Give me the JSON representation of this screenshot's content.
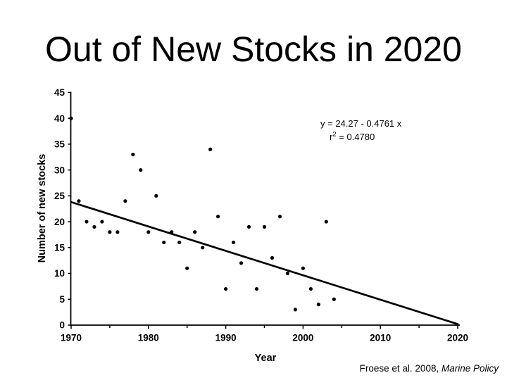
{
  "slide": {
    "title": "Out of New Stocks in 2020",
    "citation": {
      "text": "Froese et al. 2008, ",
      "source_italic": "Marine Policy"
    }
  },
  "chart_data": {
    "type": "scatter",
    "title": "",
    "xlabel": "Year",
    "ylabel": "Number of new stocks",
    "xlim": [
      1970,
      2020
    ],
    "ylim": [
      0,
      45
    ],
    "x_major_ticks": [
      1970,
      1980,
      1990,
      2000,
      2010,
      2020
    ],
    "x_minor_ticks": [
      1975,
      1985,
      1995,
      2005,
      2015
    ],
    "y_ticks": [
      0,
      5,
      10,
      15,
      20,
      25,
      30,
      35,
      40,
      45
    ],
    "grid": false,
    "legend": false,
    "marker_color": "#000000",
    "line_color": "#000000",
    "points": [
      [
        1970,
        40
      ],
      [
        1971,
        24
      ],
      [
        1972,
        20
      ],
      [
        1973,
        19
      ],
      [
        1974,
        20
      ],
      [
        1975,
        18
      ],
      [
        1976,
        18
      ],
      [
        1977,
        24
      ],
      [
        1978,
        33
      ],
      [
        1979,
        30
      ],
      [
        1980,
        18
      ],
      [
        1981,
        25
      ],
      [
        1982,
        16
      ],
      [
        1983,
        18
      ],
      [
        1984,
        16
      ],
      [
        1985,
        11
      ],
      [
        1986,
        18
      ],
      [
        1987,
        15
      ],
      [
        1988,
        34
      ],
      [
        1989,
        21
      ],
      [
        1990,
        7
      ],
      [
        1991,
        16
      ],
      [
        1992,
        12
      ],
      [
        1993,
        19
      ],
      [
        1994,
        7
      ],
      [
        1995,
        19
      ],
      [
        1996,
        13
      ],
      [
        1997,
        21
      ],
      [
        1998,
        10
      ],
      [
        1999,
        3
      ],
      [
        2000,
        11
      ],
      [
        2001,
        7
      ],
      [
        2002,
        4
      ],
      [
        2003,
        20
      ],
      [
        2004,
        5
      ]
    ],
    "trend": {
      "equation": "y = 24.27 - 0.4761 x",
      "r2": {
        "base": "r",
        "sup": "2",
        "rest": " = 0.4780"
      },
      "start": {
        "year": 1970,
        "value": 23.8
      },
      "end": {
        "year": 2020,
        "value": 0.2
      }
    }
  }
}
